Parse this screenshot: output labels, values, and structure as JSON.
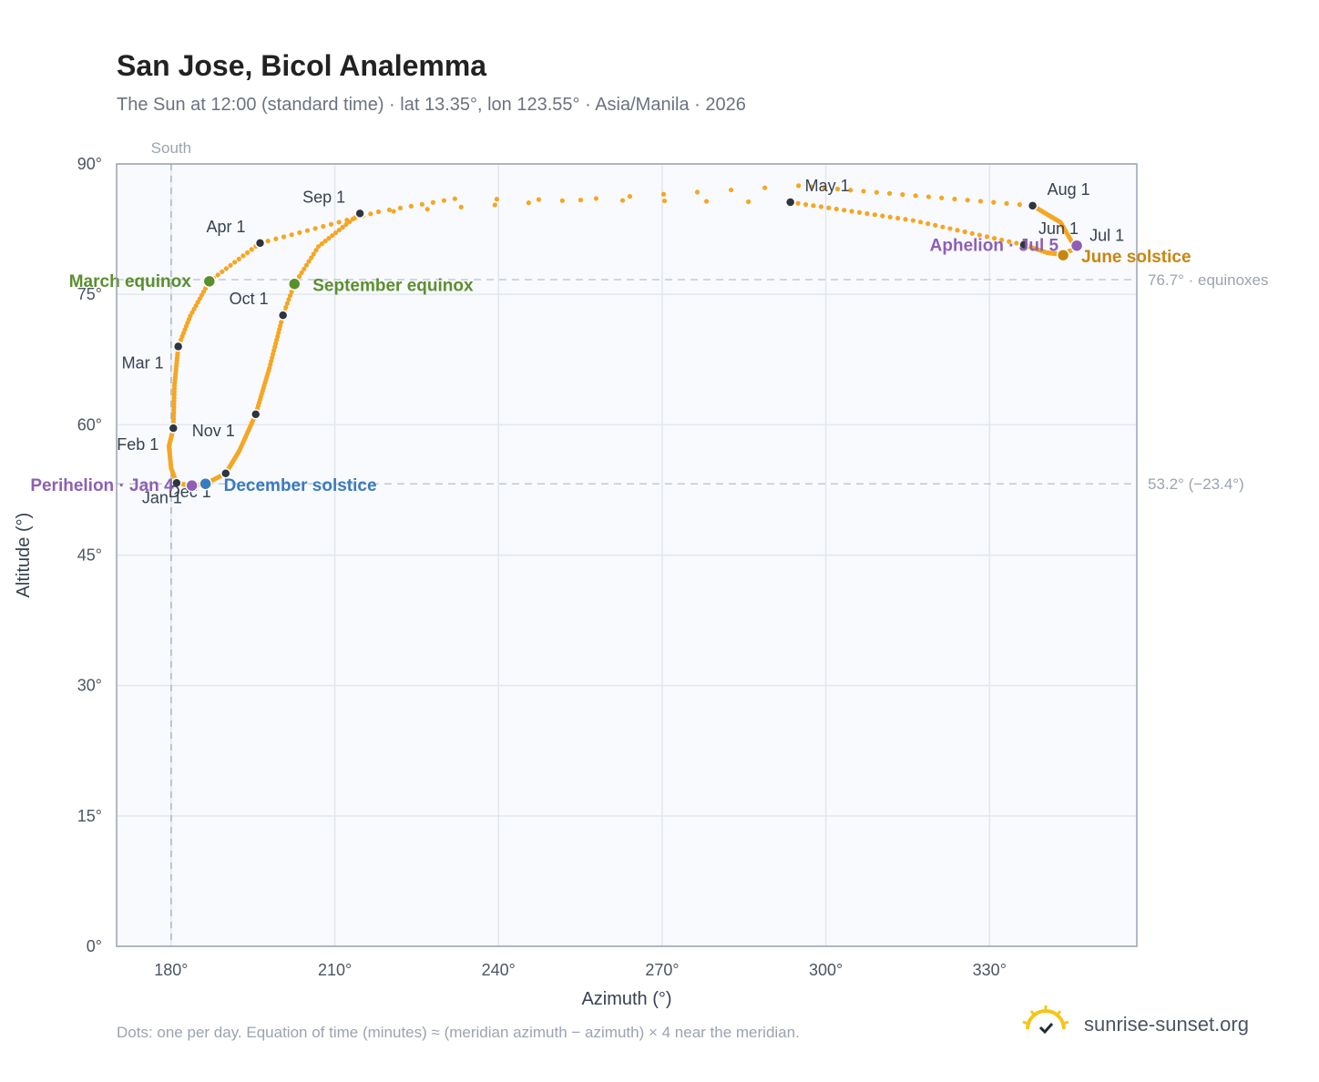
{
  "header": {
    "title": "San Jose, Bicol Analemma",
    "subtitle": "The Sun at 12:00 (standard time) · lat 13.35°, lon 123.55° · Asia/Manila · 2026"
  },
  "footnote": "Dots: one per day. Equation of time (minutes) ≈ (meridian azimuth − azimuth) × 4 near the meridian.",
  "brand": {
    "text": "sunrise-sunset.org",
    "icon": "sun-icon",
    "color": "#f5c518"
  },
  "chart_data": {
    "type": "scatter",
    "xlabel": "Azimuth (°)",
    "ylabel": "Altitude (°)",
    "xlim": [
      170,
      357
    ],
    "ylim": [
      0,
      90
    ],
    "x_ticks": [
      180,
      210,
      240,
      270,
      300,
      330
    ],
    "y_ticks": [
      0,
      15,
      30,
      45,
      60,
      75,
      90
    ],
    "x_tick_labels": [
      "180°",
      "210°",
      "240°",
      "270°",
      "300°",
      "330°"
    ],
    "y_tick_labels": [
      "0°",
      "15°",
      "30°",
      "45°",
      "60°",
      "75°",
      "90°"
    ],
    "grid": true,
    "dot_color": "#f5a623",
    "meridian": {
      "azimuth": 180,
      "label": "South"
    },
    "reference_lines": [
      {
        "altitude": 76.7,
        "label": "76.7° · equinoxes"
      },
      {
        "altitude": 53.2,
        "label": "53.2° (−23.4°)"
      }
    ],
    "path": [
      {
        "d": 0,
        "az": 181.0,
        "alt": 53.3
      },
      {
        "d": 10,
        "az": 180.0,
        "alt": 55.0
      },
      {
        "d": 20,
        "az": 179.6,
        "alt": 57.5
      },
      {
        "d": 31,
        "az": 180.4,
        "alt": 59.6
      },
      {
        "d": 45,
        "az": 180.6,
        "alt": 64.5
      },
      {
        "d": 59,
        "az": 181.3,
        "alt": 69.0
      },
      {
        "d": 68,
        "az": 183.5,
        "alt": 72.5
      },
      {
        "d": 78,
        "az": 187.0,
        "alt": 76.5
      },
      {
        "d": 90,
        "az": 196.3,
        "alt": 80.9
      },
      {
        "d": 105,
        "az": 218.0,
        "alt": 84.5
      },
      {
        "d": 112,
        "az": 232.0,
        "alt": 86.0
      },
      {
        "d": 120,
        "az": 293.5,
        "alt": 85.6
      },
      {
        "d": 136,
        "az": 316.0,
        "alt": 83.5
      },
      {
        "d": 151,
        "az": 336.3,
        "alt": 80.7
      },
      {
        "d": 160,
        "az": 340.5,
        "alt": 79.8
      },
      {
        "d": 171,
        "az": 343.0,
        "alt": 79.6
      },
      {
        "d": 181,
        "az": 346.0,
        "alt": 80.3
      },
      {
        "d": 184,
        "az": 345.5,
        "alt": 80.6
      },
      {
        "d": 195,
        "az": 343.0,
        "alt": 83.3
      },
      {
        "d": 212,
        "az": 337.9,
        "alt": 85.2
      },
      {
        "d": 230,
        "az": 295.0,
        "alt": 87.5
      },
      {
        "d": 243,
        "az": 214.6,
        "alt": 84.3
      },
      {
        "d": 255,
        "az": 207.0,
        "alt": 80.5
      },
      {
        "d": 265,
        "az": 202.6,
        "alt": 76.2
      },
      {
        "d": 273,
        "az": 200.5,
        "alt": 72.6
      },
      {
        "d": 288,
        "az": 198.0,
        "alt": 66.5
      },
      {
        "d": 304,
        "az": 195.5,
        "alt": 61.2
      },
      {
        "d": 320,
        "az": 192.5,
        "alt": 57.0
      },
      {
        "d": 334,
        "az": 190.0,
        "alt": 54.4
      },
      {
        "d": 345,
        "az": 186.3,
        "alt": 53.2
      },
      {
        "d": 354,
        "az": 183.5,
        "alt": 53.0
      },
      {
        "d": 365,
        "az": 181.0,
        "alt": 53.3
      }
    ],
    "month_markers": [
      {
        "label": "Jan 1",
        "az": 181.0,
        "alt": 53.3,
        "anchor": "end",
        "dx": 6,
        "dy": 22
      },
      {
        "label": "Feb 1",
        "az": 180.4,
        "alt": 59.6,
        "anchor": "end",
        "dx": -16,
        "dy": 24
      },
      {
        "label": "Mar 1",
        "az": 181.3,
        "alt": 69.0,
        "anchor": "end",
        "dx": -16,
        "dy": 24
      },
      {
        "label": "Apr 1",
        "az": 196.3,
        "alt": 80.9,
        "anchor": "end",
        "dx": -16,
        "dy": -12
      },
      {
        "label": "May 1",
        "az": 293.5,
        "alt": 85.6,
        "anchor": "start",
        "dx": 16,
        "dy": -12
      },
      {
        "label": "Jun 1",
        "az": 336.3,
        "alt": 80.7,
        "anchor": "start",
        "dx": 16,
        "dy": -12
      },
      {
        "label": "Jul 1",
        "az": 346.0,
        "alt": 80.3,
        "anchor": "start",
        "dx": 14,
        "dy": -8
      },
      {
        "label": "Aug 1",
        "az": 337.9,
        "alt": 85.2,
        "anchor": "start",
        "dx": 16,
        "dy": -12
      },
      {
        "label": "Sep 1",
        "az": 214.6,
        "alt": 84.3,
        "anchor": "end",
        "dx": -16,
        "dy": -12
      },
      {
        "label": "Oct 1",
        "az": 200.5,
        "alt": 72.6,
        "anchor": "end",
        "dx": -16,
        "dy": -12
      },
      {
        "label": "Nov 1",
        "az": 195.5,
        "alt": 61.2,
        "anchor": "start",
        "dx": -70,
        "dy": 24
      },
      {
        "label": "Dec 1",
        "az": 190.0,
        "alt": 54.4,
        "anchor": "end",
        "dx": -16,
        "dy": 26
      }
    ],
    "events": [
      {
        "label": "March equinox",
        "az": 187.0,
        "alt": 76.5,
        "color": "#5a8f2e",
        "anchor": "end",
        "dx": -20,
        "dy": 6
      },
      {
        "label": "September equinox",
        "az": 202.6,
        "alt": 76.2,
        "color": "#5a8f2e",
        "anchor": "start",
        "dx": 20,
        "dy": 8
      },
      {
        "label": "Perihelion · Jan 4",
        "az": 183.8,
        "alt": 53.0,
        "color": "#8e5fb3",
        "anchor": "end",
        "dx": -20,
        "dy": 6
      },
      {
        "label": "December solstice",
        "az": 186.3,
        "alt": 53.2,
        "color": "#3a7bbf",
        "anchor": "start",
        "dx": 20,
        "dy": 8
      },
      {
        "label": "Aphelion · Jul 5",
        "az": 346.0,
        "alt": 80.6,
        "color": "#8e5fb3",
        "anchor": "end",
        "dx": -20,
        "dy": 6
      },
      {
        "label": "June solstice",
        "az": 343.5,
        "alt": 79.5,
        "color": "#c8860d",
        "anchor": "start",
        "dx": 20,
        "dy": 8
      }
    ]
  }
}
